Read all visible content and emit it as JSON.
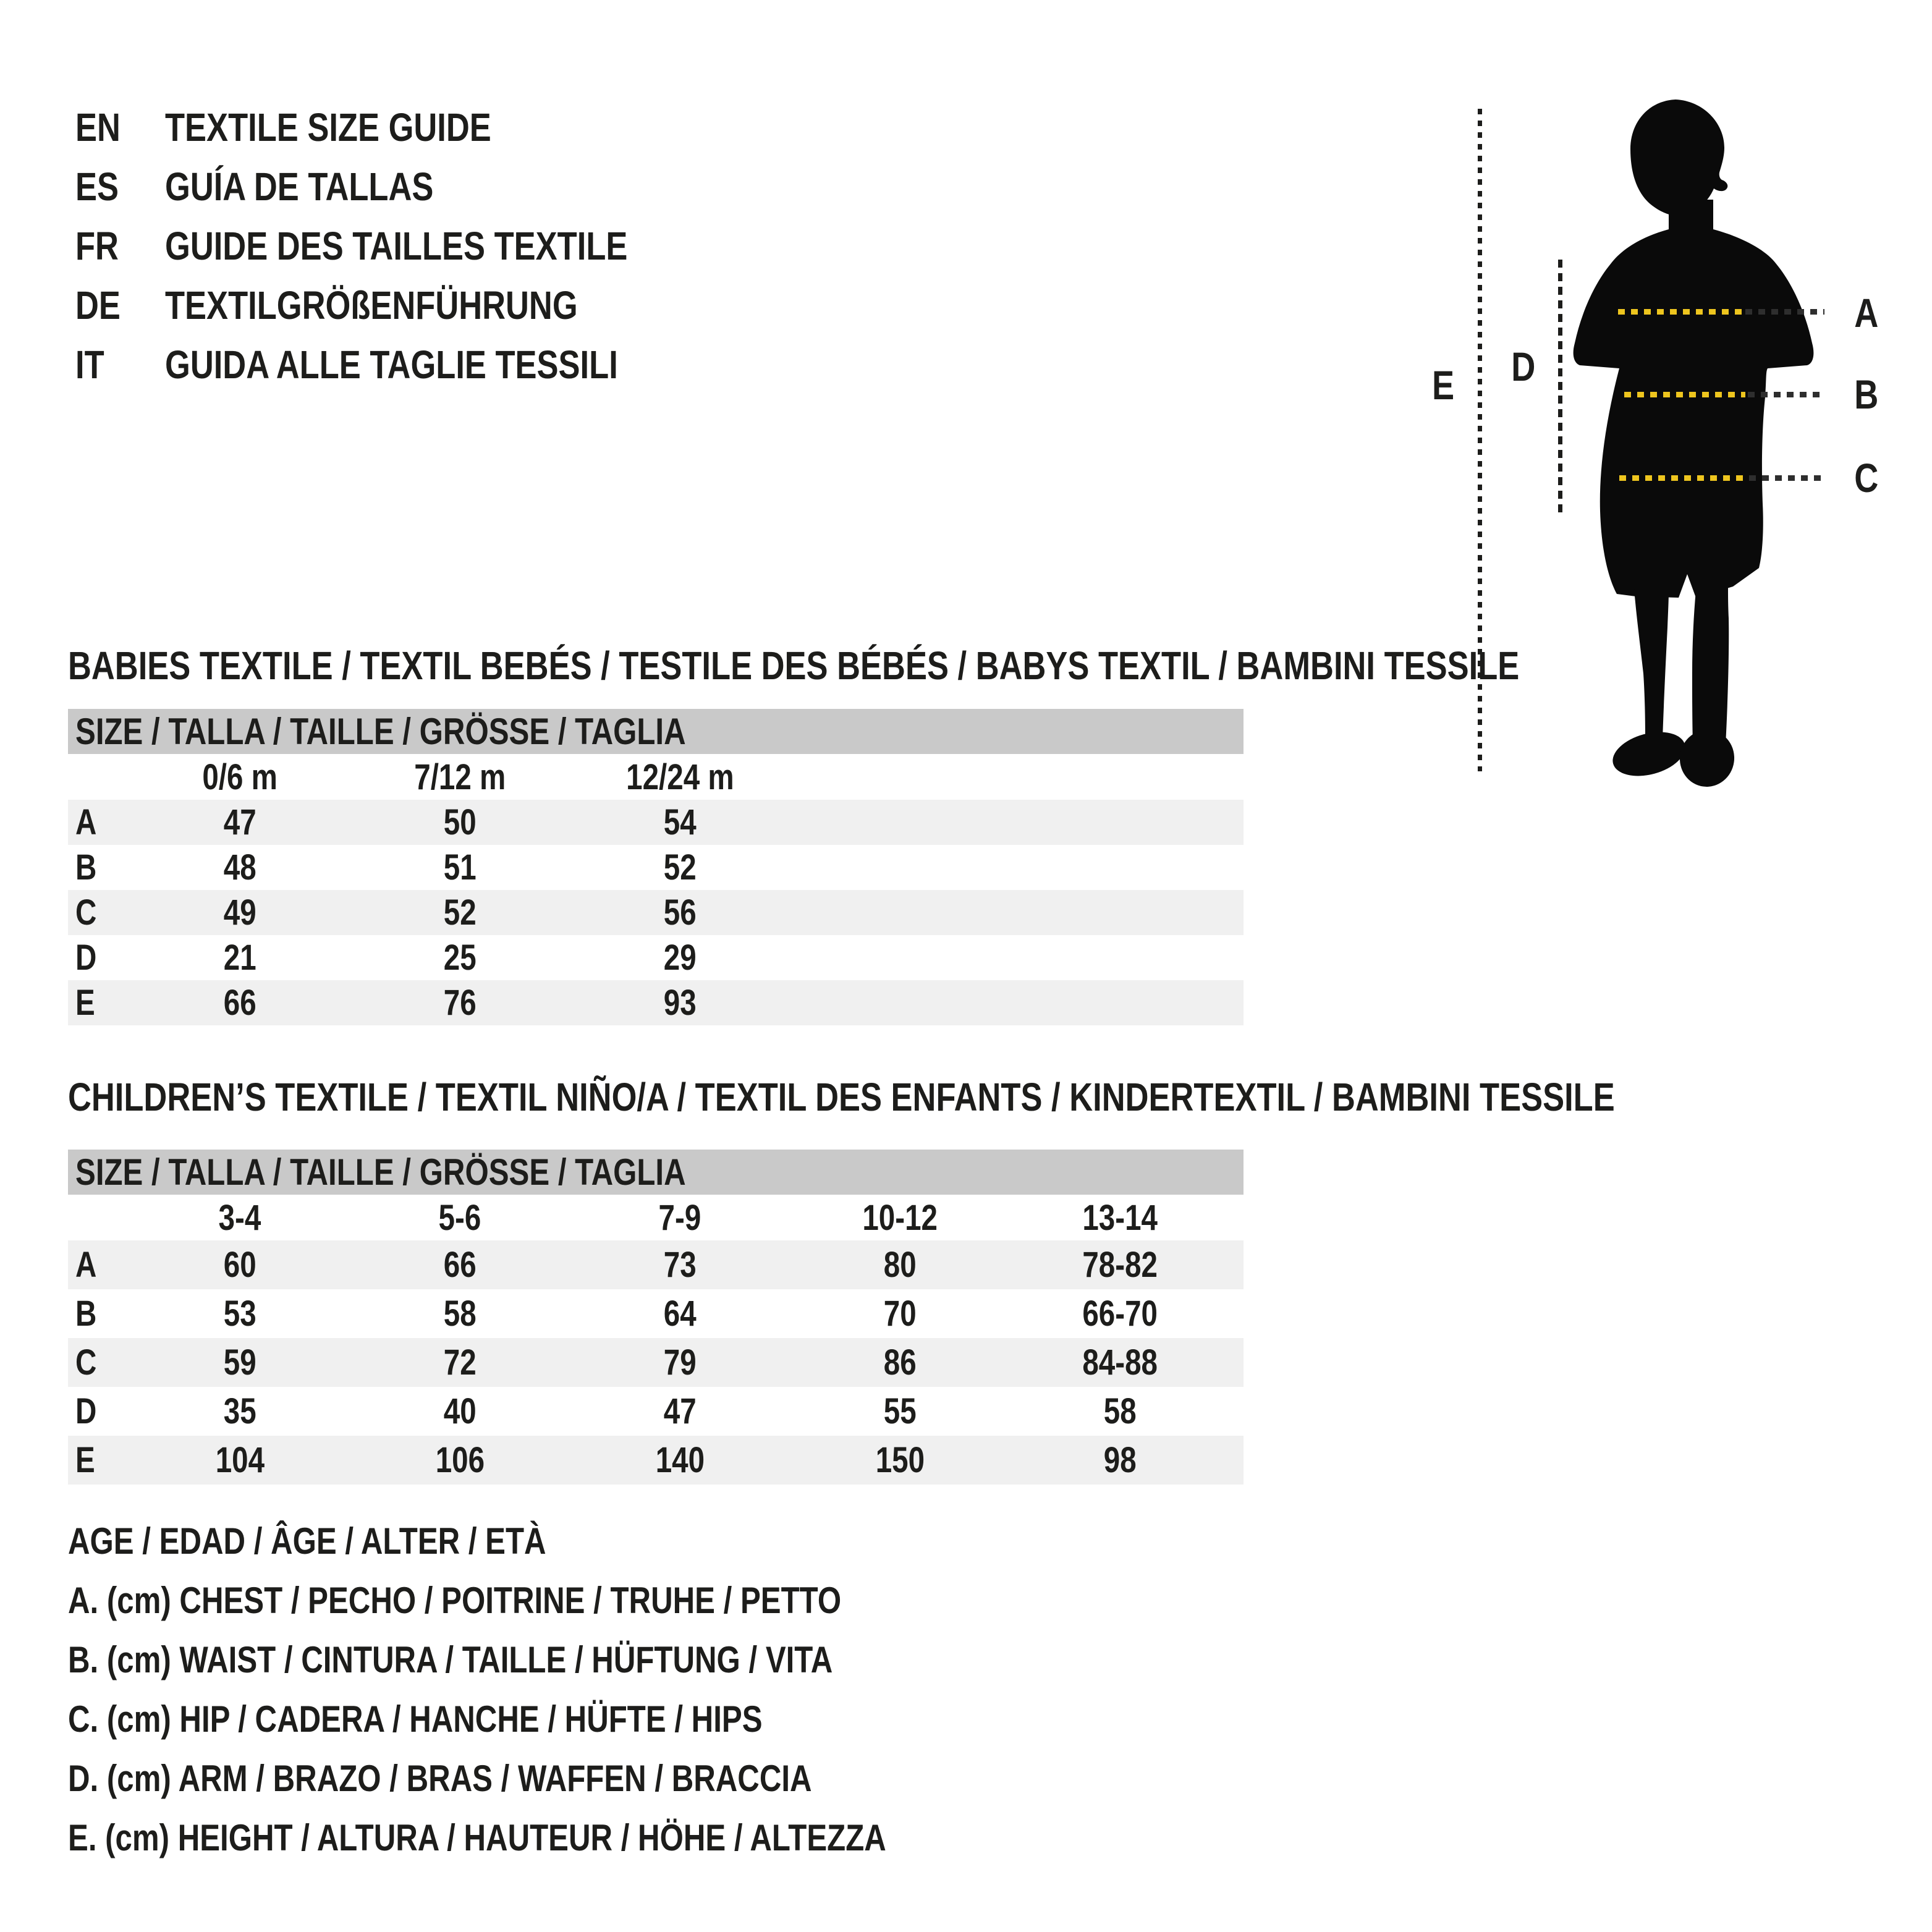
{
  "page": {
    "languages": [
      {
        "code": "EN",
        "title": "TEXTILE SIZE GUIDE"
      },
      {
        "code": "ES",
        "title": "GUÍA DE TALLAS"
      },
      {
        "code": "FR",
        "title": "GUIDE DES TAILLES TEXTILE"
      },
      {
        "code": "DE",
        "title": "TEXTILGRÖßENFÜHRUNG"
      },
      {
        "code": "IT",
        "title": "GUIDA ALLE TAGLIE TESSILI"
      }
    ],
    "figure": {
      "labels": {
        "a": "A",
        "b": "B",
        "c": "C",
        "d": "D",
        "e": "E"
      },
      "colors": {
        "dash_yellow": "#eec51e",
        "dash_dark": "#2e2e2e",
        "silhouette_black": "#0a0a0a"
      }
    },
    "tables": [
      {
        "title": "BABIES TEXTILE / TEXTIL BEBÉS / TESTILE DES BÉBÉS / BABYS TEXTIL / BAMBINI TESSILE",
        "size_header": "SIZE / TALLA / TAILLE / GRÖSSE / TAGLIA",
        "columns": [
          "0/6 m",
          "7/12 m",
          "12/24 m"
        ],
        "rows": [
          {
            "label": "A",
            "values": [
              "47",
              "50",
              "54"
            ]
          },
          {
            "label": "B",
            "values": [
              "48",
              "51",
              "52"
            ]
          },
          {
            "label": "C",
            "values": [
              "49",
              "52",
              "56"
            ]
          },
          {
            "label": "D",
            "values": [
              "21",
              "25",
              "29"
            ]
          },
          {
            "label": "E",
            "values": [
              "66",
              "76",
              "93"
            ]
          }
        ]
      },
      {
        "title": "CHILDREN’S TEXTILE / TEXTIL NIÑO/A / TEXTIL DES ENFANTS / KINDERTEXTIL / BAMBINI TESSILE",
        "size_header": "SIZE / TALLA / TAILLE / GRÖSSE / TAGLIA",
        "columns": [
          "3-4",
          "5-6",
          "7-9",
          "10-12",
          "13-14"
        ],
        "rows": [
          {
            "label": "A",
            "values": [
              "60",
              "66",
              "73",
              "80",
              "78-82"
            ]
          },
          {
            "label": "B",
            "values": [
              "53",
              "58",
              "64",
              "70",
              "66-70"
            ]
          },
          {
            "label": "C",
            "values": [
              "59",
              "72",
              "79",
              "86",
              "84-88"
            ]
          },
          {
            "label": "D",
            "values": [
              "35",
              "40",
              "47",
              "55",
              "58"
            ]
          },
          {
            "label": "E",
            "values": [
              "104",
              "106",
              "140",
              "150",
              "98"
            ]
          }
        ]
      }
    ],
    "legend": [
      "AGE / EDAD / ÂGE / ALTER / ETÀ",
      "A. (cm) CHEST / PECHO / POITRINE / TRUHE / PETTO",
      "B. (cm) WAIST / CINTURA / TAILLE / HÜFTUNG / VITA",
      "C. (cm) HIP / CADERA / HANCHE / HÜFTE / HIPS",
      "D. (cm) ARM / BRAZO / BRAS / WAFFEN / BRACCIA",
      "E. (cm) HEIGHT / ALTURA / HAUTEUR / HÖHE / ALTEZZA"
    ],
    "colors": {
      "table_header_bg": "#c9c9c9",
      "row_alt_bg": "#f0f0f0",
      "text": "#1d1d1b"
    }
  }
}
